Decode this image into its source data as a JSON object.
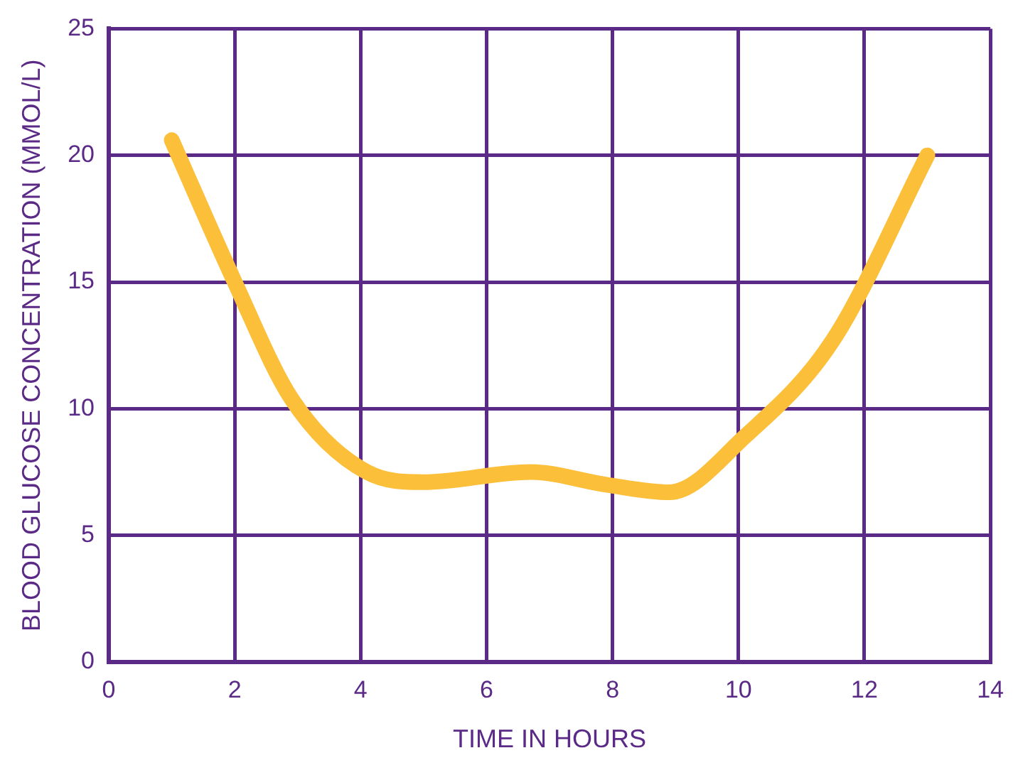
{
  "chart_data": {
    "type": "line",
    "xlabel": "TIME IN HOURS",
    "ylabel": "BLOOD GLUCOSE CONCENTRATION (MMOL/L)",
    "x": [
      1,
      2,
      2.9,
      4.1,
      5,
      6.7,
      7.9,
      8.9,
      10.1,
      11.5,
      13
    ],
    "series": [
      {
        "color": "#fbbf3a",
        "values": [
          20.6,
          15,
          10.4,
          7.5,
          7.1,
          7.5,
          7,
          6.7,
          8.9,
          12.7,
          20
        ]
      }
    ],
    "xlim": [
      0,
      14
    ],
    "xticks": [
      0,
      2,
      4,
      6,
      8,
      10,
      12,
      14
    ],
    "ylim": [
      0,
      25
    ],
    "yticks": [
      0,
      5,
      10,
      15,
      20,
      25
    ],
    "grid": true,
    "legend": false,
    "marker": "none",
    "line_style": "solid"
  }
}
